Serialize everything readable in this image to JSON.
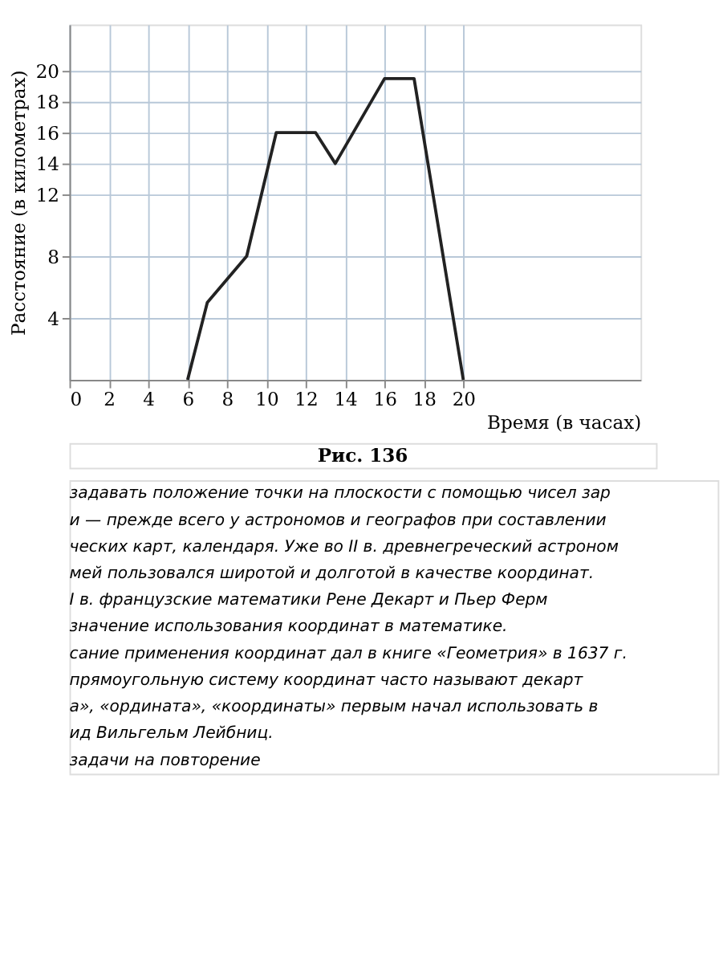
{
  "chart_data": {
    "type": "line",
    "xlabel": "Время (в часах)",
    "ylabel": "Расстояние (в километрах)",
    "x": [
      6,
      7,
      9,
      10.5,
      12.5,
      13.5,
      16,
      17.5,
      20
    ],
    "series": [
      {
        "color": "#222222",
        "values": [
          0,
          5,
          8,
          16,
          16,
          14,
          19.5,
          19.5,
          0
        ]
      }
    ],
    "xlim": [
      0,
      29
    ],
    "ylim": [
      0,
      23
    ],
    "xticks": [
      0,
      2,
      4,
      6,
      8,
      10,
      12,
      14,
      16,
      18,
      20
    ],
    "yticks": [
      4,
      8,
      12,
      14,
      16,
      18,
      20
    ],
    "grid": true,
    "marker": "none",
    "line_style": "solid",
    "annotations": [
      "Рис. 136",
      "задавать положение точки на плоскости с помощью чисел зар",
      "и — прежде всего у астрономов и географов при составлении",
      "ческих карт, календаря. Уже во II в. древнегреческий астроном",
      "мей пользовался широтой и долготой в качестве координат.",
      "I в. французские математики Рене Декарт и Пьер Ферм",
      "значение использования координат в математике.",
      "сание применения координат дал в книге «Геометрия» в 1637 г.",
      "прямоугольную систему координат часто называют декарт",
      "а», «ордината», «координаты» первым начал использовать в",
      "ид Вильгельм Лейбниц.",
      "задачи на повторение"
    ]
  }
}
